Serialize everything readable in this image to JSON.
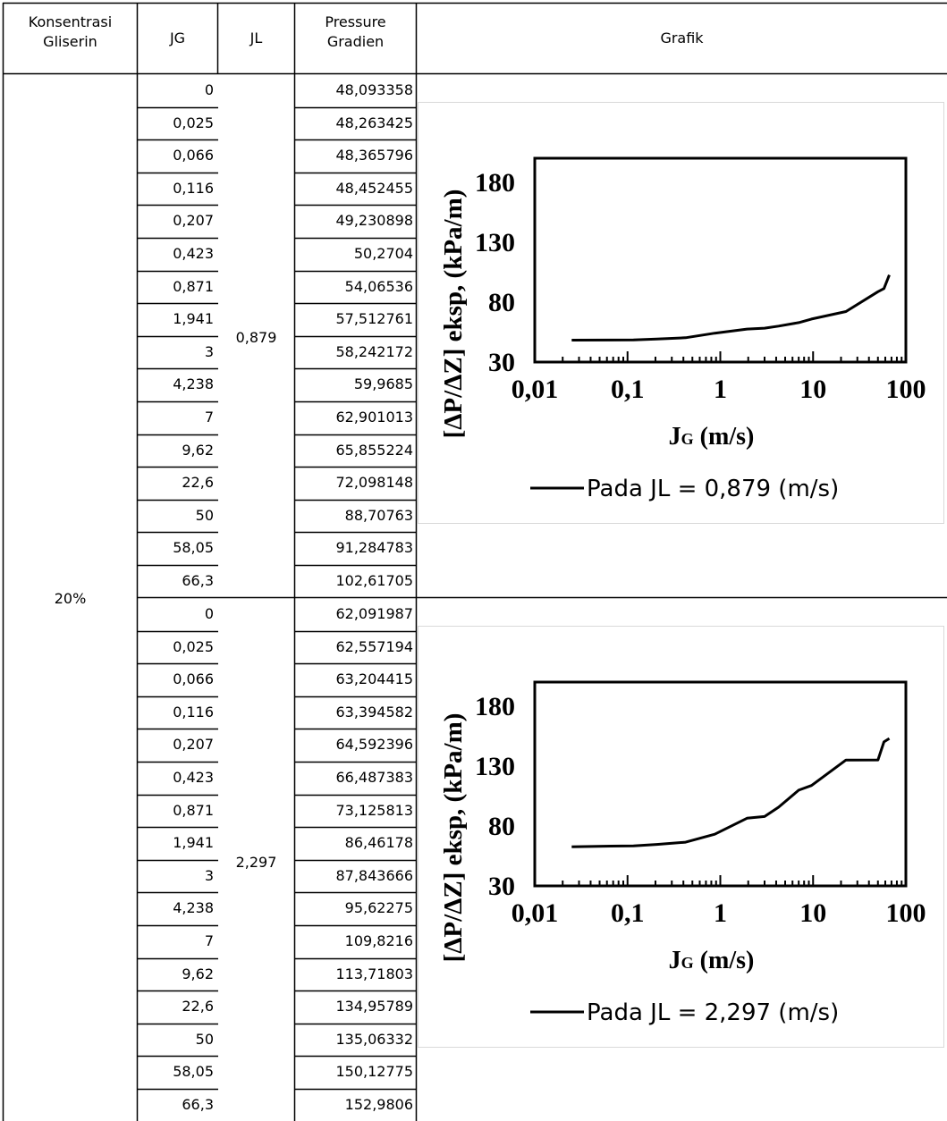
{
  "headers": {
    "konsentrasi": [
      "Konsentrasi",
      "Gliserin"
    ],
    "jg": "JG",
    "jl": "JL",
    "pressure": [
      "Pressure",
      "Gradien"
    ],
    "grafik": "Grafik"
  },
  "konsentrasi_value": "20%",
  "groups": [
    {
      "jl": "0,879",
      "jg": [
        "0",
        "0,025",
        "0,066",
        "0,116",
        "0,207",
        "0,423",
        "0,871",
        "1,941",
        "3",
        "4,238",
        "7",
        "9,62",
        "22,6",
        "50",
        "58,05",
        "66,3"
      ],
      "pressure": [
        "48,093358",
        "48,263425",
        "48,365796",
        "48,452455",
        "49,230898",
        "50,2704",
        "54,06536",
        "57,512761",
        "58,242172",
        "59,9685",
        "62,901013",
        "65,855224",
        "72,098148",
        "88,70763",
        "91,284783",
        "102,61705"
      ]
    },
    {
      "jl": "2,297",
      "jg": [
        "0",
        "0,025",
        "0,066",
        "0,116",
        "0,207",
        "0,423",
        "0,871",
        "1,941",
        "3",
        "4,238",
        "7",
        "9,62",
        "22,6",
        "50",
        "58,05",
        "66,3"
      ],
      "pressure": [
        "62,091987",
        "62,557194",
        "63,204415",
        "63,394582",
        "64,592396",
        "66,487383",
        "73,125813",
        "86,46178",
        "87,843666",
        "95,62275",
        "109,8216",
        "113,71803",
        "134,95789",
        "135,06332",
        "150,12775",
        "152,9806"
      ]
    }
  ],
  "chart_data": [
    {
      "type": "line",
      "xscale": "log",
      "xlim": [
        0.01,
        100
      ],
      "ylim": [
        30,
        200
      ],
      "xticks": [
        "0,01",
        "0,1",
        "1",
        "10",
        "100"
      ],
      "yticks": [
        "180",
        "130",
        "80",
        "30"
      ],
      "ylabel": "[ΔP/ΔZ] eksp,  (kPa/m)",
      "xlabel_main": "J",
      "xlabel_sub": "G",
      "xlabel_unit": " (m/s)",
      "legend_position": "bottom",
      "color": "#000000",
      "series": [
        {
          "name": "Pada JL = 0,879 (m/s)",
          "x": [
            0.025,
            0.066,
            0.116,
            0.207,
            0.423,
            0.871,
            1.941,
            3,
            4.238,
            7,
            9.62,
            22.6,
            50,
            58.05,
            66.3
          ],
          "y": [
            48.263425,
            48.365796,
            48.452455,
            49.230898,
            50.2704,
            54.06536,
            57.512761,
            58.242172,
            59.9685,
            62.901013,
            65.855224,
            72.098148,
            88.70763,
            91.284783,
            102.61705
          ]
        }
      ]
    },
    {
      "type": "line",
      "xscale": "log",
      "xlim": [
        0.01,
        100
      ],
      "ylim": [
        30,
        200
      ],
      "xticks": [
        "0,01",
        "0,1",
        "1",
        "10",
        "100"
      ],
      "yticks": [
        "180",
        "130",
        "80",
        "30"
      ],
      "ylabel": "[ΔP/ΔZ] eksp,  (kPa/m)",
      "xlabel_main": "J",
      "xlabel_sub": "G",
      "xlabel_unit": " (m/s)",
      "legend_position": "bottom",
      "color": "#000000",
      "series": [
        {
          "name": "Pada JL = 2,297 (m/s)",
          "x": [
            0.025,
            0.066,
            0.116,
            0.207,
            0.423,
            0.871,
            1.941,
            3,
            4.238,
            7,
            9.62,
            22.6,
            50,
            58.05,
            66.3
          ],
          "y": [
            62.557194,
            63.204415,
            63.394582,
            64.592396,
            66.487383,
            73.125813,
            86.46178,
            87.843666,
            95.62275,
            109.8216,
            113.71803,
            134.95789,
            135.06332,
            150.12775,
            152.9806
          ]
        }
      ]
    }
  ]
}
